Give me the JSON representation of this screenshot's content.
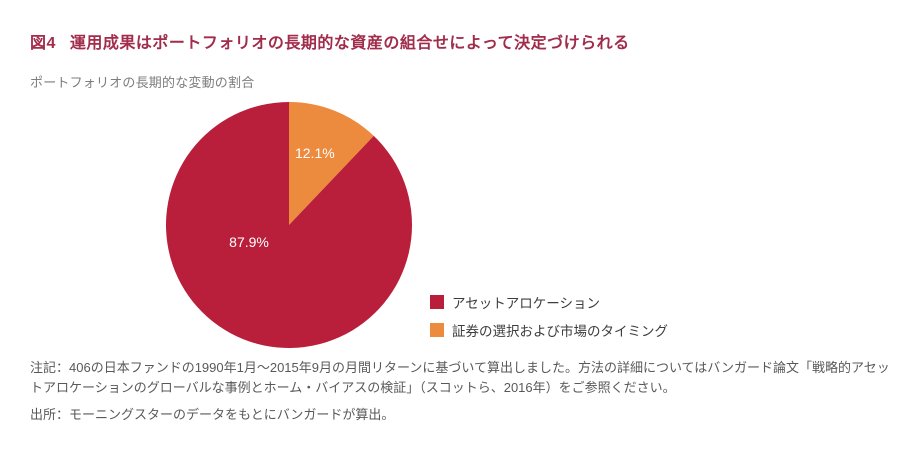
{
  "figure": {
    "label": "図4",
    "title": "運用成果はポートフォリオの長期的な資産の組合せによって決定づけられる",
    "subtitle": "ポートフォリオの長期的な変動の割合"
  },
  "chart_data": {
    "type": "pie",
    "title": "ポートフォリオの長期的な変動の割合",
    "start_angle": "top",
    "direction": "clockwise-small-slice-first",
    "legend_position": "right-bottom",
    "slices": [
      {
        "name": "asset-allocation",
        "label": "アセットアロケーション",
        "value": 87.9,
        "display": "87.9%",
        "color": "#B91F3A",
        "label_pos": [
          -0.325,
          0.138
        ]
      },
      {
        "name": "security-selection-market-timing",
        "label": "証券の選択および市場のタイミング",
        "value": 12.1,
        "display": "12.1%",
        "color": "#EC8A3D",
        "label_pos": [
          0.21,
          -0.585
        ]
      }
    ]
  },
  "notes": {
    "note": "注記：406の日本ファンドの1990年1月～2015年9月の月間リターンに基づいて算出しました。方法の詳細についてはバンガード論文「戦略的アセットアロケーションのグローバルな事例とホーム・バイアスの検証」（スコットら、2016年）をご参照ください。",
    "source": "出所：モーニングスターのデータをもとにバンガードが算出。"
  },
  "colors": {
    "title": "#A12C4B",
    "subtitle": "#7D7D7D",
    "note_text": "#595959",
    "legend_text": "#3D3D3D",
    "background": "#FFFFFF"
  }
}
